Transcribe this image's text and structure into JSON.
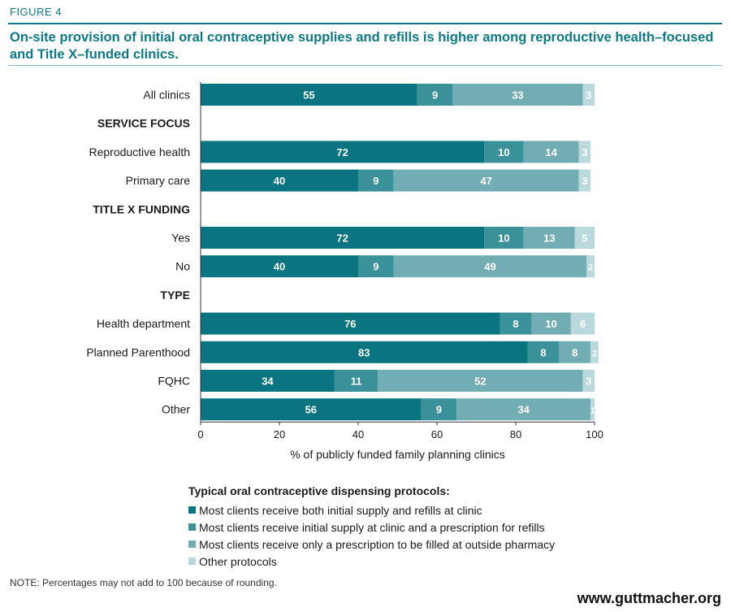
{
  "figure_label": "FIGURE 4",
  "title": "On-site provision of initial oral contraceptive supplies and refills is higher among reproductive health–focused and Title X–funded clinics.",
  "note": "NOTE: Percentages may not add to 100 because of rounding.",
  "brand": "www.guttmacher.org",
  "legend": {
    "title": "Typical oral contraceptive dispensing protocols:",
    "items": [
      {
        "label": "Most clients receive both initial supply and refills at clinic",
        "color": "#0a7480"
      },
      {
        "label": "Most clients receive initial supply at clinic and a prescription for refills",
        "color": "#3a9199"
      },
      {
        "label": "Most clients receive only a prescription to be filled at outside pharmacy",
        "color": "#73adb4"
      },
      {
        "label": "Other protocols",
        "color": "#b9d9dd"
      }
    ]
  },
  "chart_data": {
    "type": "bar",
    "orientation": "horizontal",
    "stacked": true,
    "xlabel": "% of publicly funded family planning clinics",
    "xlim": [
      0,
      100
    ],
    "xticks": [
      0,
      20,
      40,
      60,
      80,
      100
    ],
    "rows": [
      {
        "label": "All clinics",
        "kind": "data",
        "values": [
          55,
          9,
          33,
          3
        ]
      },
      {
        "label": "SERVICE FOCUS",
        "kind": "header"
      },
      {
        "label": "Reproductive health",
        "kind": "data",
        "values": [
          72,
          10,
          14,
          3
        ]
      },
      {
        "label": "Primary care",
        "kind": "data",
        "values": [
          40,
          9,
          47,
          3
        ]
      },
      {
        "label": "TITLE X FUNDING",
        "kind": "header"
      },
      {
        "label": "Yes",
        "kind": "data",
        "values": [
          72,
          10,
          13,
          5
        ]
      },
      {
        "label": "No",
        "kind": "data",
        "values": [
          40,
          9,
          49,
          2
        ]
      },
      {
        "label": "TYPE",
        "kind": "header"
      },
      {
        "label": "Health department",
        "kind": "data",
        "values": [
          76,
          8,
          10,
          6
        ]
      },
      {
        "label": "Planned Parenthood",
        "kind": "data",
        "values": [
          83,
          8,
          8,
          2
        ]
      },
      {
        "label": "FQHC",
        "kind": "data",
        "values": [
          34,
          11,
          52,
          3
        ]
      },
      {
        "label": "Other",
        "kind": "data",
        "values": [
          56,
          9,
          34,
          1
        ]
      }
    ],
    "series": [
      {
        "name": "Most clients receive both initial supply and refills at clinic",
        "color": "#0a7480"
      },
      {
        "name": "Most clients receive initial supply at clinic and a prescription for refills",
        "color": "#3a9199"
      },
      {
        "name": "Most clients receive only a prescription to be filled at outside pharmacy",
        "color": "#73adb4"
      },
      {
        "name": "Other protocols",
        "color": "#b9d9dd"
      }
    ]
  }
}
